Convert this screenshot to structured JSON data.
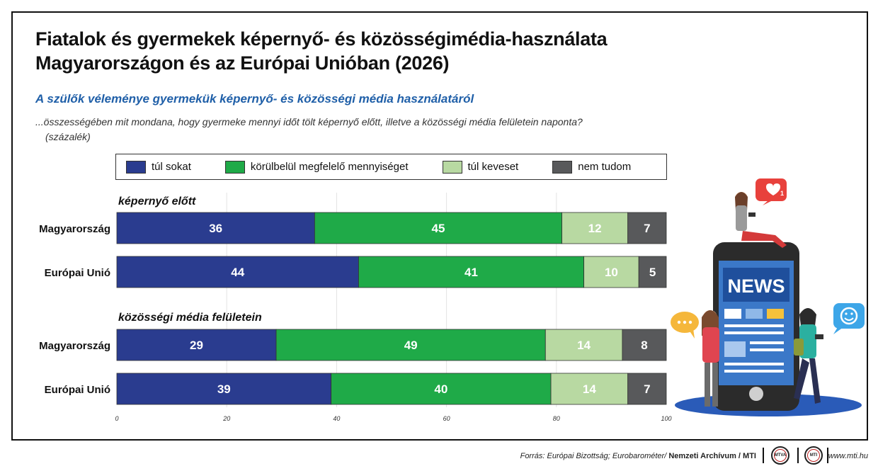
{
  "title_line1": "Fiatalok és gyermekek képernyő- és közösségimédia-használata",
  "title_line2": "Magyarországon és az Európai Unióban (2026)",
  "subtitle": "A szülők véleménye gyermekük képernyő- és közösségi média használatáról",
  "question": "...összességében mit mondana, hogy gyermeke mennyi időt tölt képernyő előtt, illetve a közösségi média felületein naponta?",
  "unit": "(százalék)",
  "colors": {
    "sok": "#2a3c8f",
    "megfelelo": "#1faa48",
    "keves": "#b8d9a2",
    "nem_tudom": "#58595b"
  },
  "chart_data": {
    "type": "bar",
    "orientation": "horizontal",
    "stacked": true,
    "xlim": [
      0,
      100
    ],
    "xticks": [
      0,
      20,
      40,
      60,
      80,
      100
    ],
    "series_names": [
      "túl sokat",
      "körülbelül megfelelő mennyiséget",
      "túl keveset",
      "nem tudom"
    ],
    "groups": [
      {
        "label": "képernyő előtt",
        "rows": [
          {
            "category": "Magyarország",
            "values": [
              36,
              45,
              12,
              7
            ]
          },
          {
            "category": "Európai Unió",
            "values": [
              44,
              41,
              10,
              5
            ]
          }
        ]
      },
      {
        "label": "közösségi média felületein",
        "rows": [
          {
            "category": "Magyarország",
            "values": [
              29,
              49,
              14,
              8
            ]
          },
          {
            "category": "Európai Unió",
            "values": [
              39,
              40,
              14,
              7
            ]
          }
        ]
      }
    ]
  },
  "illustration": {
    "news_label": "NEWS",
    "badge_count": "1"
  },
  "footer": {
    "source_prefix": "Forrás: Európai Bizottság; Eurobarométer/ ",
    "source_bold": "Nemzeti Archívum",
    "source_sep": " / ",
    "source_mti": "MTI",
    "logo1": "MTVA",
    "logo2": "MTI",
    "url": "www.mti.hu"
  }
}
